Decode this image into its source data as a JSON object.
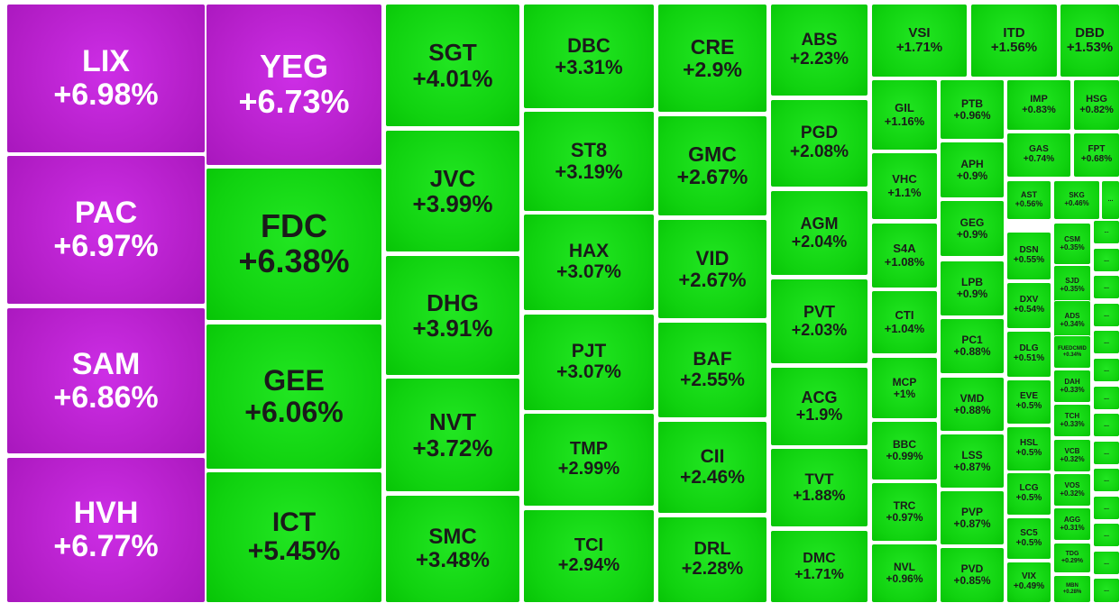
{
  "colors": {
    "ceiling": "#b41ec8",
    "up": "#10d20f"
  },
  "tiles": [
    {
      "ticker": "LIX",
      "change": "+6.98%",
      "kind": "ceiling"
    },
    {
      "ticker": "PAC",
      "change": "+6.97%",
      "kind": "ceiling"
    },
    {
      "ticker": "SAM",
      "change": "+6.86%",
      "kind": "ceiling"
    },
    {
      "ticker": "HVH",
      "change": "+6.77%",
      "kind": "ceiling"
    },
    {
      "ticker": "YEG",
      "change": "+6.73%",
      "kind": "ceiling"
    },
    {
      "ticker": "FDC",
      "change": "+6.38%",
      "kind": "up"
    },
    {
      "ticker": "GEE",
      "change": "+6.06%",
      "kind": "up"
    },
    {
      "ticker": "ICT",
      "change": "+5.45%",
      "kind": "up"
    },
    {
      "ticker": "SGT",
      "change": "+4.01%",
      "kind": "up"
    },
    {
      "ticker": "JVC",
      "change": "+3.99%",
      "kind": "up"
    },
    {
      "ticker": "DHG",
      "change": "+3.91%",
      "kind": "up"
    },
    {
      "ticker": "NVT",
      "change": "+3.72%",
      "kind": "up"
    },
    {
      "ticker": "SMC",
      "change": "+3.48%",
      "kind": "up"
    },
    {
      "ticker": "DBC",
      "change": "+3.31%",
      "kind": "up"
    },
    {
      "ticker": "ST8",
      "change": "+3.19%",
      "kind": "up"
    },
    {
      "ticker": "HAX",
      "change": "+3.07%",
      "kind": "up"
    },
    {
      "ticker": "PJT",
      "change": "+3.07%",
      "kind": "up"
    },
    {
      "ticker": "TMP",
      "change": "+2.99%",
      "kind": "up"
    },
    {
      "ticker": "TCI",
      "change": "+2.94%",
      "kind": "up"
    },
    {
      "ticker": "CRE",
      "change": "+2.9%",
      "kind": "up"
    },
    {
      "ticker": "GMC",
      "change": "+2.67%",
      "kind": "up"
    },
    {
      "ticker": "VID",
      "change": "+2.67%",
      "kind": "up"
    },
    {
      "ticker": "BAF",
      "change": "+2.55%",
      "kind": "up"
    },
    {
      "ticker": "CII",
      "change": "+2.46%",
      "kind": "up"
    },
    {
      "ticker": "DRL",
      "change": "+2.28%",
      "kind": "up"
    },
    {
      "ticker": "ABS",
      "change": "+2.23%",
      "kind": "up"
    },
    {
      "ticker": "PGD",
      "change": "+2.08%",
      "kind": "up"
    },
    {
      "ticker": "AGM",
      "change": "+2.04%",
      "kind": "up"
    },
    {
      "ticker": "PVT",
      "change": "+2.03%",
      "kind": "up"
    },
    {
      "ticker": "ACG",
      "change": "+1.9%",
      "kind": "up"
    },
    {
      "ticker": "TVT",
      "change": "+1.88%",
      "kind": "up"
    },
    {
      "ticker": "DMC",
      "change": "+1.71%",
      "kind": "up"
    },
    {
      "ticker": "VSI",
      "change": "+1.71%",
      "kind": "up"
    },
    {
      "ticker": "ITD",
      "change": "+1.56%",
      "kind": "up"
    },
    {
      "ticker": "DBD",
      "change": "+1.53%",
      "kind": "up"
    },
    {
      "ticker": "GIL",
      "change": "+1.16%",
      "kind": "up"
    },
    {
      "ticker": "VHC",
      "change": "+1.1%",
      "kind": "up"
    },
    {
      "ticker": "S4A",
      "change": "+1.08%",
      "kind": "up"
    },
    {
      "ticker": "CTI",
      "change": "+1.04%",
      "kind": "up"
    },
    {
      "ticker": "MCP",
      "change": "+1%",
      "kind": "up"
    },
    {
      "ticker": "BBC",
      "change": "+0.99%",
      "kind": "up"
    },
    {
      "ticker": "TRC",
      "change": "+0.97%",
      "kind": "up"
    },
    {
      "ticker": "NVL",
      "change": "+0.96%",
      "kind": "up"
    },
    {
      "ticker": "PTB",
      "change": "+0.96%",
      "kind": "up"
    },
    {
      "ticker": "APH",
      "change": "+0.9%",
      "kind": "up"
    },
    {
      "ticker": "GEG",
      "change": "+0.9%",
      "kind": "up"
    },
    {
      "ticker": "LPB",
      "change": "+0.9%",
      "kind": "up"
    },
    {
      "ticker": "PC1",
      "change": "+0.88%",
      "kind": "up"
    },
    {
      "ticker": "VMD",
      "change": "+0.88%",
      "kind": "up"
    },
    {
      "ticker": "LSS",
      "change": "+0.87%",
      "kind": "up"
    },
    {
      "ticker": "PVP",
      "change": "+0.87%",
      "kind": "up"
    },
    {
      "ticker": "PVD",
      "change": "+0.85%",
      "kind": "up"
    },
    {
      "ticker": "IMP",
      "change": "+0.83%",
      "kind": "up"
    },
    {
      "ticker": "HSG",
      "change": "+0.82%",
      "kind": "up"
    },
    {
      "ticker": "GAS",
      "change": "+0.74%",
      "kind": "up"
    },
    {
      "ticker": "FPT",
      "change": "+0.68%",
      "kind": "up"
    },
    {
      "ticker": "AST",
      "change": "+0.56%",
      "kind": "up"
    },
    {
      "ticker": "SKG",
      "change": "+0.46%",
      "kind": "up"
    },
    {
      "ticker": "DSN",
      "change": "+0.55%",
      "kind": "up"
    },
    {
      "ticker": "DXV",
      "change": "+0.54%",
      "kind": "up"
    },
    {
      "ticker": "DLG",
      "change": "+0.51%",
      "kind": "up"
    },
    {
      "ticker": "EVE",
      "change": "+0.5%",
      "kind": "up"
    },
    {
      "ticker": "HSL",
      "change": "+0.5%",
      "kind": "up"
    },
    {
      "ticker": "LCG",
      "change": "+0.5%",
      "kind": "up"
    },
    {
      "ticker": "SC5",
      "change": "+0.5%",
      "kind": "up"
    },
    {
      "ticker": "VIX",
      "change": "+0.49%",
      "kind": "up"
    },
    {
      "ticker": "CSM",
      "change": "+0.35%",
      "kind": "up"
    },
    {
      "ticker": "SJD",
      "change": "+0.35%",
      "kind": "up"
    },
    {
      "ticker": "ADS",
      "change": "+0.34%",
      "kind": "up"
    },
    {
      "ticker": "FUEDCMID",
      "change": "+0.34%",
      "kind": "up"
    },
    {
      "ticker": "DAH",
      "change": "+0.33%",
      "kind": "up"
    },
    {
      "ticker": "TCH",
      "change": "+0.33%",
      "kind": "up"
    },
    {
      "ticker": "VCB",
      "change": "+0.32%",
      "kind": "up"
    },
    {
      "ticker": "VOS",
      "change": "+0.32%",
      "kind": "up"
    },
    {
      "ticker": "AGG",
      "change": "+0.31%",
      "kind": "up"
    },
    {
      "ticker": "TDG",
      "change": "+0.29%",
      "kind": "up"
    },
    {
      "ticker": "MBN",
      "change": "+0.28%",
      "kind": "up"
    },
    {
      "ticker": "...",
      "change": "",
      "kind": "up"
    },
    {
      "ticker": "...",
      "change": "",
      "kind": "up"
    },
    {
      "ticker": "...",
      "change": "",
      "kind": "up"
    },
    {
      "ticker": "...",
      "change": "",
      "kind": "up"
    },
    {
      "ticker": "...",
      "change": "",
      "kind": "up"
    },
    {
      "ticker": "...",
      "change": "",
      "kind": "up"
    },
    {
      "ticker": "...",
      "change": "",
      "kind": "up"
    },
    {
      "ticker": "...",
      "change": "",
      "kind": "up"
    },
    {
      "ticker": "...",
      "change": "",
      "kind": "up"
    },
    {
      "ticker": "...",
      "change": "",
      "kind": "up"
    },
    {
      "ticker": "...",
      "change": "",
      "kind": "up"
    },
    {
      "ticker": "...",
      "change": "",
      "kind": "up"
    },
    {
      "ticker": "...",
      "change": "",
      "kind": "up"
    },
    {
      "ticker": "...",
      "change": "",
      "kind": "up"
    },
    {
      "ticker": "...",
      "change": "",
      "kind": "up"
    }
  ]
}
